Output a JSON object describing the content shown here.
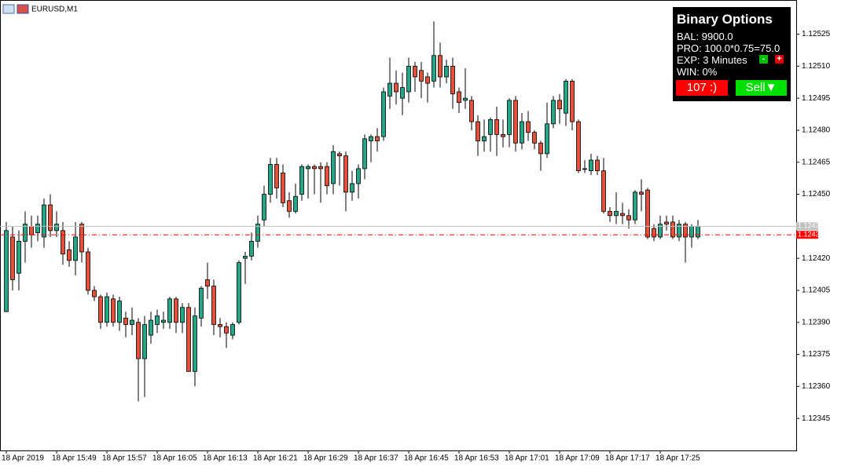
{
  "chart_data": {
    "type": "candlestick",
    "symbol": "EURUSD,M1",
    "up_color": "#26a686",
    "down_color": "#e0533a",
    "ylim": [
      1.1233,
      1.12541
    ],
    "yticks": [
      1.12345,
      {
        "value": 1.1236,
        "label": "1.12360"
      },
      1.12375,
      {
        "value": 1.1239,
        "label": "1.12390"
      },
      1.12405,
      {
        "value": 1.1242,
        "label": "1.12420"
      },
      {
        "value": 1.1245,
        "label": "1.12450"
      },
      1.12465,
      {
        "value": 1.1248,
        "label": "1.12480"
      },
      1.12495,
      {
        "value": 1.1251,
        "label": "1.12510"
      },
      1.12525
    ],
    "price_lines": [
      {
        "value": 1.12435,
        "color": "#c0c0c0"
      },
      {
        "value": 1.12431,
        "color": "#ff0000"
      }
    ],
    "categories": [
      "18 Apr 2019",
      null,
      null,
      null,
      null,
      null,
      null,
      null,
      "18 Apr 15:49",
      null,
      null,
      null,
      null,
      null,
      null,
      null,
      "18 Apr 15:57",
      null,
      null,
      null,
      null,
      null,
      null,
      null,
      "18 Apr 16:05",
      null,
      null,
      null,
      null,
      null,
      null,
      null,
      "18 Apr 16:13",
      null,
      null,
      null,
      null,
      null,
      null,
      null,
      "18 Apr 16:21",
      null,
      null,
      null,
      null,
      null,
      null,
      null,
      "18 Apr 16:29",
      null,
      null,
      null,
      null,
      null,
      null,
      null,
      "18 Apr 16:37",
      null,
      null,
      null,
      null,
      null,
      null,
      null,
      "18 Apr 16:45",
      null,
      null,
      null,
      null,
      null,
      null,
      null,
      "18 Apr 16:53",
      null,
      null,
      null,
      null,
      null,
      null,
      null,
      "18 Apr 17:01",
      null,
      null,
      null,
      null,
      null,
      null,
      null,
      "18 Apr 17:09",
      null,
      null,
      null,
      null,
      null,
      null,
      null,
      "18 Apr 17:17",
      null,
      null,
      null,
      null,
      null,
      null,
      null,
      "18 Apr 17:25",
      null,
      null,
      null,
      null,
      null,
      null
    ],
    "open": [
      1.12395,
      1.1243,
      1.12413,
      1.12428,
      1.12435,
      1.12432,
      1.1243,
      1.12445,
      1.12433,
      1.12433,
      1.12424,
      1.12419,
      1.12436,
      1.12423,
      1.12405,
      1.12402,
      1.1239,
      1.12401,
      1.1239,
      1.12392,
      1.12389,
      1.1239,
      1.12373,
      1.12384,
      1.12389,
      1.1239,
      1.1239,
      1.12401,
      1.1239,
      1.12397,
      1.12367,
      1.12392,
      1.1241,
      1.12407,
      1.12389,
      1.12388,
      1.12384,
      1.1239,
      1.1242,
      1.12421,
      1.12428,
      1.12438,
      1.1245,
      1.12464,
      1.1246,
      1.12447,
      1.12442,
      1.1245,
      1.12462,
      1.12463,
      1.12463,
      1.12463,
      1.12455,
      1.12469,
      1.12468,
      1.12451,
      1.12455,
      1.12462,
      1.12475,
      1.12477,
      1.12477,
      1.12496,
      1.12502,
      1.12495,
      1.12498,
      1.1251,
      1.12508,
      1.12505,
      1.12503,
      1.12515,
      1.12505,
      1.1251,
      1.12498,
      1.12494,
      1.12494,
      1.12484,
      1.12475,
      1.12478,
      1.12485,
      1.12478,
      1.12478,
      1.12494,
      1.12474,
      1.12484,
      1.12479,
      1.12474,
      1.12469,
      1.12483,
      1.12494,
      1.12488,
      1.12503,
      1.12484,
      1.12462,
      1.12461,
      1.12466,
      1.12461,
      1.12442,
      1.1244,
      1.12441,
      1.1244,
      1.12438,
      1.12451,
      1.12452,
      1.12434,
      1.1243,
      1.12437,
      1.12437,
      1.1243,
      1.12436,
      1.1243,
      1.1243
    ],
    "high": [
      1.12437,
      1.12435,
      1.12433,
      1.12442,
      1.1244,
      1.1244,
      1.12448,
      1.1245,
      1.12442,
      1.12437,
      1.12428,
      1.12437,
      1.12437,
      1.12425,
      1.12407,
      1.12403,
      1.12404,
      1.12403,
      1.12402,
      1.12395,
      1.12397,
      1.12392,
      1.12393,
      1.12395,
      1.12396,
      1.12395,
      1.12402,
      1.12402,
      1.12399,
      1.12399,
      1.12397,
      1.12407,
      1.12418,
      1.1241,
      1.12392,
      1.1239,
      1.1239,
      1.12419,
      1.12423,
      1.12432,
      1.1244,
      1.12454,
      1.12467,
      1.12467,
      1.12464,
      1.12451,
      1.12455,
      1.12464,
      1.12464,
      1.12464,
      1.12465,
      1.12465,
      1.12473,
      1.1247,
      1.1247,
      1.12461,
      1.12464,
      1.12478,
      1.12478,
      1.12481,
      1.125,
      1.12514,
      1.12508,
      1.12507,
      1.12514,
      1.12512,
      1.12512,
      1.12507,
      1.12531,
      1.12521,
      1.12513,
      1.12514,
      1.125,
      1.12509,
      1.12496,
      1.12487,
      1.12485,
      1.12486,
      1.12491,
      1.12485,
      1.12495,
      1.12496,
      1.12488,
      1.12489,
      1.1248,
      1.12475,
      1.12493,
      1.12496,
      1.12497,
      1.12504,
      1.12504,
      1.12485,
      1.12466,
      1.12469,
      1.12468,
      1.12467,
      1.12444,
      1.12451,
      1.12446,
      1.12443,
      1.12452,
      1.12457,
      1.12453,
      1.12436,
      1.1244,
      1.1244,
      1.1244,
      1.12438,
      1.12437,
      1.12436,
      1.12438
    ],
    "low": [
      1.12395,
      1.12405,
      1.12405,
      1.12418,
      1.12425,
      1.12428,
      1.12425,
      1.1243,
      1.1243,
      1.12417,
      1.12416,
      1.12412,
      1.12418,
      1.12403,
      1.124,
      1.12387,
      1.12388,
      1.12388,
      1.12386,
      1.12383,
      1.12384,
      1.12353,
      1.12355,
      1.1238,
      1.12385,
      1.12387,
      1.12387,
      1.12385,
      1.12385,
      1.12367,
      1.1236,
      1.12388,
      1.12401,
      1.12384,
      1.12383,
      1.12378,
      1.12382,
      1.12389,
      1.12408,
      1.12419,
      1.12425,
      1.12435,
      1.12446,
      1.12448,
      1.12444,
      1.12439,
      1.12441,
      1.12447,
      1.12448,
      1.1245,
      1.12446,
      1.1245,
      1.1245,
      1.12454,
      1.12442,
      1.12447,
      1.12448,
      1.12457,
      1.12465,
      1.1247,
      1.12475,
      1.1249,
      1.12492,
      1.12487,
      1.12493,
      1.12498,
      1.12495,
      1.12493,
      1.125,
      1.125,
      1.12502,
      1.1249,
      1.12488,
      1.1249,
      1.1248,
      1.12468,
      1.1247,
      1.1247,
      1.12468,
      1.12472,
      1.12472,
      1.1247,
      1.12471,
      1.12475,
      1.12471,
      1.12461,
      1.12467,
      1.12481,
      1.12483,
      1.12482,
      1.1248,
      1.1246,
      1.1246,
      1.12459,
      1.12459,
      1.12441,
      1.12437,
      1.12436,
      1.12436,
      1.12434,
      1.12436,
      1.12442,
      1.12429,
      1.12428,
      1.12429,
      1.12433,
      1.12429,
      1.12428,
      1.12418,
      1.12425,
      1.12429
    ],
    "close": [
      1.12433,
      1.1241,
      1.12428,
      1.12436,
      1.12431,
      1.12436,
      1.12445,
      1.12433,
      1.12436,
      1.12422,
      1.12419,
      1.1243,
      1.12423,
      1.12405,
      1.12402,
      1.1239,
      1.12402,
      1.1239,
      1.124,
      1.12389,
      1.12391,
      1.12373,
      1.12389,
      1.12391,
      1.12393,
      1.12391,
      1.12401,
      1.1239,
      1.12397,
      1.12367,
      1.12393,
      1.12406,
      1.12407,
      1.12389,
      1.12388,
      1.12385,
      1.12389,
      1.12418,
      1.12421,
      1.12428,
      1.12436,
      1.1245,
      1.12464,
      1.12453,
      1.12446,
      1.12442,
      1.12449,
      1.12463,
      1.12463,
      1.12462,
      1.12462,
      1.12454,
      1.1247,
      1.12468,
      1.12451,
      1.12455,
      1.12462,
      1.12476,
      1.12477,
      1.12475,
      1.12498,
      1.12502,
      1.12498,
      1.125,
      1.1251,
      1.12505,
      1.12503,
      1.12502,
      1.12515,
      1.12505,
      1.1251,
      1.12497,
      1.12493,
      1.12495,
      1.12484,
      1.12475,
      1.12477,
      1.12485,
      1.12478,
      1.12477,
      1.12494,
      1.12474,
      1.12484,
      1.12479,
      1.12474,
      1.12469,
      1.12483,
      1.12494,
      1.1249,
      1.12503,
      1.12484,
      1.12461,
      1.12462,
      1.12466,
      1.12461,
      1.12442,
      1.1244,
      1.12442,
      1.1244,
      1.12438,
      1.12451,
      1.1245,
      1.1243,
      1.1243,
      1.12436,
      1.12436,
      1.1243,
      1.12436,
      1.1243,
      1.12435,
      1.12435
    ]
  },
  "panel": {
    "title": "Binary Options",
    "balance": "BAL: 9900.0",
    "profit": "PRO: 100.0*0.75=75.0",
    "expiry": "EXP: 3 Minutes",
    "minus": "-",
    "plus": "+",
    "win": "WIN: 0%",
    "counter": "107 :)",
    "sell": "Sell▼"
  }
}
